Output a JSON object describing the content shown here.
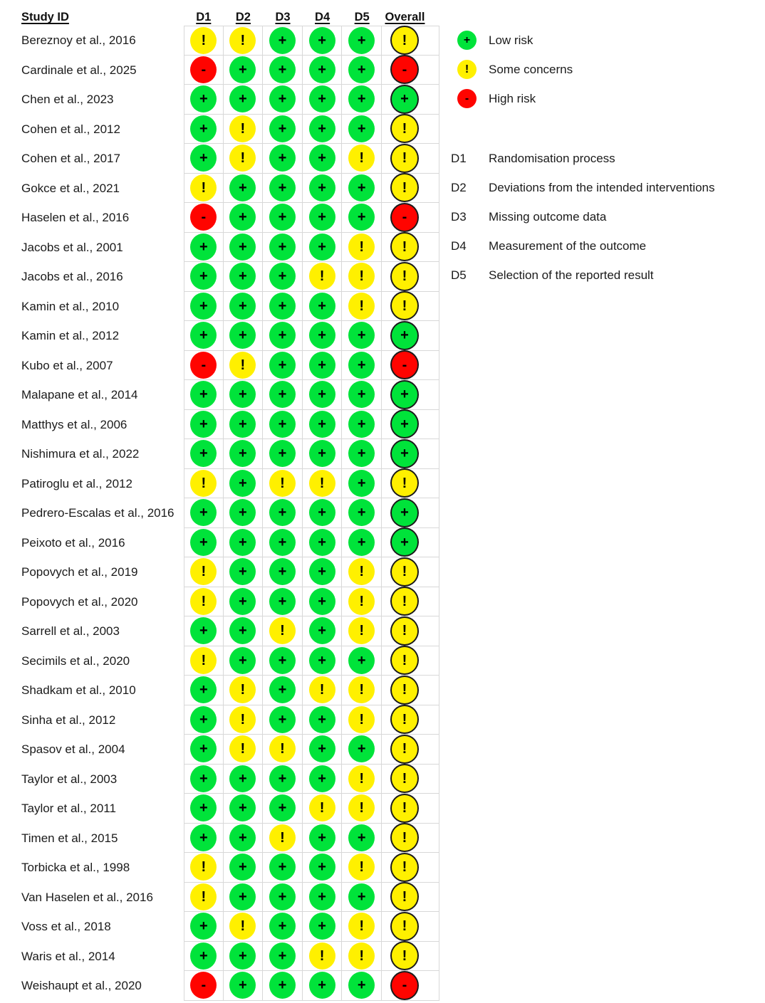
{
  "chart_data": {
    "type": "table",
    "columns": [
      "Study ID",
      "D1",
      "D2",
      "D3",
      "D4",
      "D5",
      "Overall"
    ],
    "studies": [
      {
        "name": "Bereznoy et al., 2016",
        "ratings": [
          "some",
          "some",
          "low",
          "low",
          "low",
          "some"
        ]
      },
      {
        "name": "Cardinale et al., 2025",
        "ratings": [
          "high",
          "low",
          "low",
          "low",
          "low",
          "high"
        ]
      },
      {
        "name": "Chen et al., 2023",
        "ratings": [
          "low",
          "low",
          "low",
          "low",
          "low",
          "low"
        ]
      },
      {
        "name": "Cohen et al., 2012",
        "ratings": [
          "low",
          "some",
          "low",
          "low",
          "low",
          "some"
        ]
      },
      {
        "name": "Cohen et al., 2017",
        "ratings": [
          "low",
          "some",
          "low",
          "low",
          "some",
          "some"
        ]
      },
      {
        "name": "Gokce et al., 2021",
        "ratings": [
          "some",
          "low",
          "low",
          "low",
          "low",
          "some"
        ]
      },
      {
        "name": "Haselen et al., 2016",
        "ratings": [
          "high",
          "low",
          "low",
          "low",
          "low",
          "high"
        ]
      },
      {
        "name": "Jacobs et al., 2001",
        "ratings": [
          "low",
          "low",
          "low",
          "low",
          "some",
          "some"
        ]
      },
      {
        "name": "Jacobs et al., 2016",
        "ratings": [
          "low",
          "low",
          "low",
          "some",
          "some",
          "some"
        ]
      },
      {
        "name": "Kamin et al., 2010",
        "ratings": [
          "low",
          "low",
          "low",
          "low",
          "some",
          "some"
        ]
      },
      {
        "name": "Kamin et al., 2012",
        "ratings": [
          "low",
          "low",
          "low",
          "low",
          "low",
          "low"
        ]
      },
      {
        "name": "Kubo et al., 2007",
        "ratings": [
          "high",
          "some",
          "low",
          "low",
          "low",
          "high"
        ]
      },
      {
        "name": "Malapane et al., 2014",
        "ratings": [
          "low",
          "low",
          "low",
          "low",
          "low",
          "low"
        ]
      },
      {
        "name": "Matthys et al., 2006",
        "ratings": [
          "low",
          "low",
          "low",
          "low",
          "low",
          "low"
        ]
      },
      {
        "name": "Nishimura et al., 2022",
        "ratings": [
          "low",
          "low",
          "low",
          "low",
          "low",
          "low"
        ]
      },
      {
        "name": "Patiroglu et al., 2012",
        "ratings": [
          "some",
          "low",
          "some",
          "some",
          "low",
          "some"
        ]
      },
      {
        "name": "Pedrero-Escalas et al., 2016",
        "ratings": [
          "low",
          "low",
          "low",
          "low",
          "low",
          "low"
        ]
      },
      {
        "name": "Peixoto et al., 2016",
        "ratings": [
          "low",
          "low",
          "low",
          "low",
          "low",
          "low"
        ]
      },
      {
        "name": "Popovych et al., 2019",
        "ratings": [
          "some",
          "low",
          "low",
          "low",
          "some",
          "some"
        ]
      },
      {
        "name": "Popovych et al., 2020",
        "ratings": [
          "some",
          "low",
          "low",
          "low",
          "some",
          "some"
        ]
      },
      {
        "name": "Sarrell et al., 2003",
        "ratings": [
          "low",
          "low",
          "some",
          "low",
          "some",
          "some"
        ]
      },
      {
        "name": "Secimils et al., 2020",
        "ratings": [
          "some",
          "low",
          "low",
          "low",
          "low",
          "some"
        ]
      },
      {
        "name": "Shadkam et al., 2010",
        "ratings": [
          "low",
          "some",
          "low",
          "some",
          "some",
          "some"
        ]
      },
      {
        "name": "Sinha et al., 2012",
        "ratings": [
          "low",
          "some",
          "low",
          "low",
          "some",
          "some"
        ]
      },
      {
        "name": "Spasov et al., 2004",
        "ratings": [
          "low",
          "some",
          "some",
          "low",
          "low",
          "some"
        ]
      },
      {
        "name": "Taylor et al., 2003",
        "ratings": [
          "low",
          "low",
          "low",
          "low",
          "some",
          "some"
        ]
      },
      {
        "name": "Taylor et al., 2011",
        "ratings": [
          "low",
          "low",
          "low",
          "some",
          "some",
          "some"
        ]
      },
      {
        "name": "Timen et al., 2015",
        "ratings": [
          "low",
          "low",
          "some",
          "low",
          "low",
          "some"
        ]
      },
      {
        "name": "Torbicka et al., 1998",
        "ratings": [
          "some",
          "low",
          "low",
          "low",
          "some",
          "some"
        ]
      },
      {
        "name": "Van Haselen et al., 2016",
        "ratings": [
          "some",
          "low",
          "low",
          "low",
          "low",
          "some"
        ]
      },
      {
        "name": "Voss et al., 2018",
        "ratings": [
          "low",
          "some",
          "low",
          "low",
          "some",
          "some"
        ]
      },
      {
        "name": "Waris et al., 2014",
        "ratings": [
          "low",
          "low",
          "low",
          "some",
          "some",
          "some"
        ]
      },
      {
        "name": "Weishaupt et al., 2020",
        "ratings": [
          "high",
          "low",
          "low",
          "low",
          "low",
          "high"
        ]
      }
    ],
    "legend": [
      {
        "level": "low",
        "label": "Low risk"
      },
      {
        "level": "some",
        "label": "Some concerns"
      },
      {
        "level": "high",
        "label": "High risk"
      }
    ],
    "domains": [
      {
        "id": "D1",
        "label": "Randomisation process"
      },
      {
        "id": "D2",
        "label": "Deviations from the intended interventions"
      },
      {
        "id": "D3",
        "label": "Missing outcome data"
      },
      {
        "id": "D4",
        "label": "Measurement of the outcome"
      },
      {
        "id": "D5",
        "label": "Selection of the reported result"
      }
    ],
    "symbols": {
      "low": "+",
      "some": "!",
      "high": "-"
    },
    "colors": {
      "low": "#00e33a",
      "some": "#fff000",
      "high": "#ff0400"
    }
  }
}
